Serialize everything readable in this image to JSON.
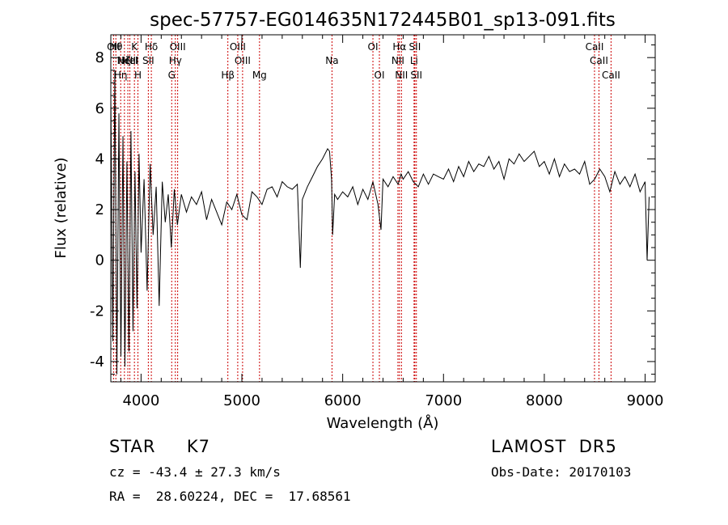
{
  "chart_data": {
    "type": "line",
    "title": "spec-57757-EG014635N172445B01_sp13-091.fits",
    "xlabel": "Wavelength (Å)",
    "ylabel": "Flux (relative)",
    "xlim": [
      3700,
      9100
    ],
    "ylim": [
      -4.8,
      8.9
    ],
    "xticks": [
      4000,
      5000,
      6000,
      7000,
      8000,
      9000
    ],
    "yticks": [
      -4,
      -2,
      0,
      2,
      4,
      6,
      8
    ],
    "grid": false,
    "series": [
      {
        "x": [
          3700,
          3720,
          3740,
          3760,
          3780,
          3800,
          3820,
          3840,
          3860,
          3880,
          3900,
          3920,
          3940,
          3960,
          3980,
          4000,
          4030,
          4060,
          4090,
          4120,
          4150,
          4180,
          4210,
          4240,
          4270,
          4300,
          4330,
          4360,
          4400,
          4450,
          4500,
          4550,
          4600,
          4650,
          4700,
          4750,
          4800,
          4850,
          4900,
          4950,
          5000,
          5050,
          5100,
          5150,
          5200,
          5250,
          5300,
          5350,
          5400,
          5450,
          5500,
          5550,
          5580,
          5600,
          5650,
          5700,
          5750,
          5800,
          5850,
          5870,
          5890,
          5900,
          5920,
          5950,
          6000,
          6050,
          6100,
          6150,
          6200,
          6250,
          6300,
          6350,
          6380,
          6400,
          6450,
          6500,
          6550,
          6580,
          6600,
          6650,
          6700,
          6750,
          6800,
          6850,
          6900,
          6950,
          7000,
          7050,
          7100,
          7150,
          7200,
          7250,
          7300,
          7350,
          7400,
          7450,
          7500,
          7550,
          7600,
          7650,
          7700,
          7750,
          7800,
          7850,
          7900,
          7950,
          8000,
          8050,
          8100,
          8150,
          8200,
          8250,
          8300,
          8350,
          8400,
          8450,
          8500,
          8550,
          8600,
          8650,
          8700,
          8750,
          8800,
          8850,
          8900,
          8950,
          9000,
          9020,
          9040
        ],
        "y": [
          6.5,
          -3.2,
          7.5,
          -4.5,
          5.8,
          -3.8,
          4.9,
          -4.2,
          3.9,
          -3.6,
          5.1,
          -2.8,
          3.5,
          -1.9,
          4.2,
          0.3,
          3.2,
          -1.2,
          3.8,
          1.0,
          2.9,
          -1.8,
          3.1,
          1.5,
          2.6,
          0.5,
          2.8,
          1.4,
          2.6,
          1.9,
          2.5,
          2.2,
          2.7,
          1.6,
          2.4,
          1.9,
          1.4,
          2.3,
          2.0,
          2.6,
          1.8,
          1.6,
          2.7,
          2.5,
          2.2,
          2.8,
          2.9,
          2.5,
          3.1,
          2.9,
          2.8,
          3.0,
          -0.3,
          2.4,
          2.9,
          3.3,
          3.7,
          4.0,
          4.4,
          4.3,
          3.2,
          1.0,
          2.6,
          2.4,
          2.7,
          2.5,
          2.9,
          2.2,
          2.8,
          2.4,
          3.1,
          2.2,
          1.2,
          3.2,
          2.9,
          3.3,
          3.0,
          3.4,
          3.2,
          3.5,
          3.1,
          2.9,
          3.4,
          3.0,
          3.4,
          3.3,
          3.2,
          3.6,
          3.1,
          3.7,
          3.3,
          3.9,
          3.5,
          3.8,
          3.7,
          4.1,
          3.6,
          3.9,
          3.2,
          4.0,
          3.8,
          4.2,
          3.9,
          4.1,
          4.3,
          3.7,
          3.9,
          3.4,
          4.0,
          3.3,
          3.8,
          3.5,
          3.6,
          3.4,
          3.9,
          3.0,
          3.2,
          3.6,
          3.3,
          2.7,
          3.5,
          3.0,
          3.3,
          2.9,
          3.4,
          2.7,
          3.1,
          0.0,
          2.5
        ]
      }
    ],
    "lines": [
      {
        "x": 3727,
        "labels": [
          "OII"
        ]
      },
      {
        "x": 3750,
        "labels": [
          "Hθ"
        ]
      },
      {
        "x": 3798,
        "labels": [
          "",
          "",
          "Hη"
        ]
      },
      {
        "x": 3835,
        "labels": [
          "",
          "Hζ"
        ]
      },
      {
        "x": 3869,
        "labels": [
          "",
          "NeIII"
        ]
      },
      {
        "x": 3889,
        "labels": [
          "",
          "HeI"
        ]
      },
      {
        "x": 3934,
        "labels": [
          "K"
        ]
      },
      {
        "x": 3969,
        "labels": [
          "",
          "",
          "H"
        ]
      },
      {
        "x": 4072,
        "labels": [
          "",
          "SII"
        ]
      },
      {
        "x": 4102,
        "labels": [
          "Hδ"
        ]
      },
      {
        "x": 4304,
        "labels": [
          "",
          "",
          "G"
        ]
      },
      {
        "x": 4340,
        "labels": [
          "",
          "Hγ"
        ]
      },
      {
        "x": 4363,
        "labels": [
          "OIII"
        ]
      },
      {
        "x": 4861,
        "labels": [
          "",
          "",
          "Hβ"
        ]
      },
      {
        "x": 4959,
        "labels": [
          "OIII"
        ]
      },
      {
        "x": 5007,
        "labels": [
          "",
          "OIII"
        ]
      },
      {
        "x": 5175,
        "labels": [
          "",
          "",
          "Mg"
        ]
      },
      {
        "x": 5894,
        "labels": [
          "",
          "Na"
        ]
      },
      {
        "x": 6300,
        "labels": [
          "OI"
        ]
      },
      {
        "x": 6364,
        "labels": [
          "",
          "",
          "OI"
        ]
      },
      {
        "x": 6548,
        "labels": [
          "",
          "NII"
        ]
      },
      {
        "x": 6563,
        "labels": [
          "Hα"
        ]
      },
      {
        "x": 6583,
        "labels": [
          "",
          "",
          "NII"
        ]
      },
      {
        "x": 6708,
        "labels": [
          "",
          "Li"
        ]
      },
      {
        "x": 6716,
        "labels": [
          "SII"
        ]
      },
      {
        "x": 6731,
        "labels": [
          "",
          "",
          "SII"
        ]
      },
      {
        "x": 8498,
        "labels": [
          "CaII"
        ]
      },
      {
        "x": 8542,
        "labels": [
          "",
          "CaII"
        ]
      },
      {
        "x": 8662,
        "labels": [
          "",
          "",
          "CaII"
        ]
      }
    ]
  },
  "info": {
    "object": "STAR     K7",
    "survey": "LAMOST  DR5",
    "cz": "cz = -43.4 ± 27.3 km/s",
    "obs_date": "Obs-Date: 20170103",
    "coords": "RA =  28.60224, DEC =  17.68561"
  }
}
